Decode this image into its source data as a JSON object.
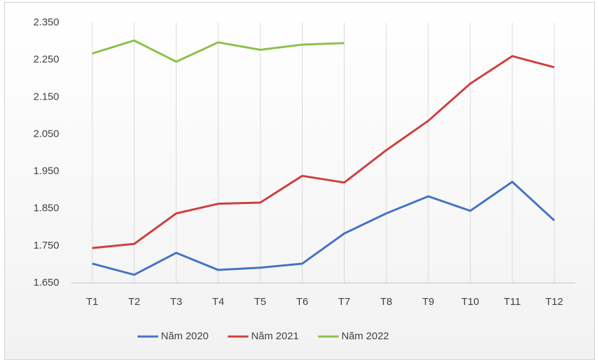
{
  "chart_data": {
    "type": "line",
    "categories": [
      "T1",
      "T2",
      "T3",
      "T4",
      "T5",
      "T6",
      "T7",
      "T8",
      "T9",
      "T10",
      "T11",
      "T12"
    ],
    "series": [
      {
        "name": "Năm 2020",
        "color": "#4472c4",
        "values": [
          1702,
          1672,
          1731,
          1685,
          1691,
          1702,
          1783,
          1837,
          1883,
          1844,
          1922,
          1818
        ]
      },
      {
        "name": "Năm 2021",
        "color": "#d13d3d",
        "values": [
          1744,
          1755,
          1837,
          1863,
          1866,
          1938,
          1920,
          2007,
          2086,
          2186,
          2260,
          2230
        ]
      },
      {
        "name": "Năm 2022",
        "color": "#8cc04a",
        "values": [
          2267,
          2302,
          2245,
          2297,
          2277,
          2291,
          2295,
          null,
          null,
          null,
          null,
          null
        ]
      }
    ],
    "ylim": [
      1650,
      2350
    ],
    "yticks": [
      {
        "value": 1650,
        "label": "1.650"
      },
      {
        "value": 1750,
        "label": "1.750"
      },
      {
        "value": 1850,
        "label": "1.850"
      },
      {
        "value": 1950,
        "label": "1.950"
      },
      {
        "value": 2050,
        "label": "2.050"
      },
      {
        "value": 2150,
        "label": "2.150"
      },
      {
        "value": 2250,
        "label": "2.250"
      },
      {
        "value": 2350,
        "label": "2.350"
      }
    ],
    "grid": "vertical",
    "legend": "bottom"
  }
}
